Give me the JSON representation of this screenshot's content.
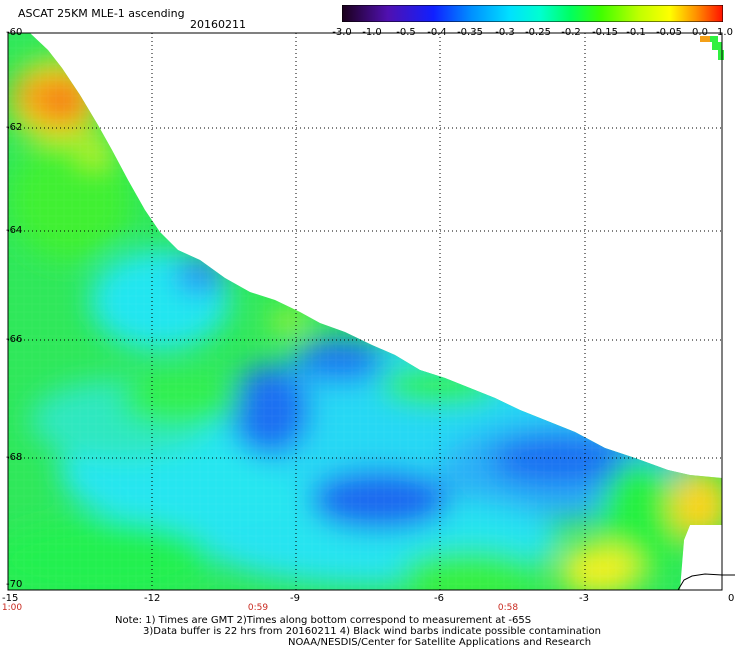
{
  "header": {
    "title": "ASCAT 25KM MLE-1 ascending",
    "date": "20160211"
  },
  "colorbar": {
    "labels": [
      "-3.0",
      "-1.0",
      "-0.5",
      "-0.4",
      "-0.35",
      "-0.3",
      "-0.25",
      "-0.2",
      "-0.15",
      "-0.1",
      "-0.05",
      "0.0",
      "1.0"
    ],
    "colors": [
      "#2a0030",
      "#4b0090",
      "#2020d8",
      "#0a60ff",
      "#0090ff",
      "#00c8ff",
      "#00f0e0",
      "#00ff90",
      "#30ff20",
      "#a0ff00",
      "#ffff00",
      "#ffb000",
      "#ff2000"
    ]
  },
  "axes": {
    "lat_labels": [
      "-60",
      "-62",
      "-64",
      "-66",
      "-68",
      "-70"
    ],
    "lon_labels": [
      "-15",
      "-12",
      "-9",
      "-6",
      "-3",
      "0"
    ],
    "time_labels": [
      "1:00",
      "0:59",
      "0:58"
    ]
  },
  "notes": {
    "line1": "Note: 1) Times are GMT 2)Times along bottom correspond to measurement at -65S",
    "line2": "3)Data buffer is 22 hrs from 20160211 4) Black wind barbs indicate possible contamination",
    "line3": "NOAA/NESDIS/Center for Satellite Applications and Research"
  },
  "map_colors": {
    "blue": "#1c6cf2",
    "mid_blue": "#2a9cf8",
    "cyan": "#22e8f2",
    "green": "#1ef25a",
    "bright_green": "#20ff20",
    "yellow_green": "#a8f21e",
    "yellow": "#f8e81e",
    "orange": "#f87a12"
  }
}
